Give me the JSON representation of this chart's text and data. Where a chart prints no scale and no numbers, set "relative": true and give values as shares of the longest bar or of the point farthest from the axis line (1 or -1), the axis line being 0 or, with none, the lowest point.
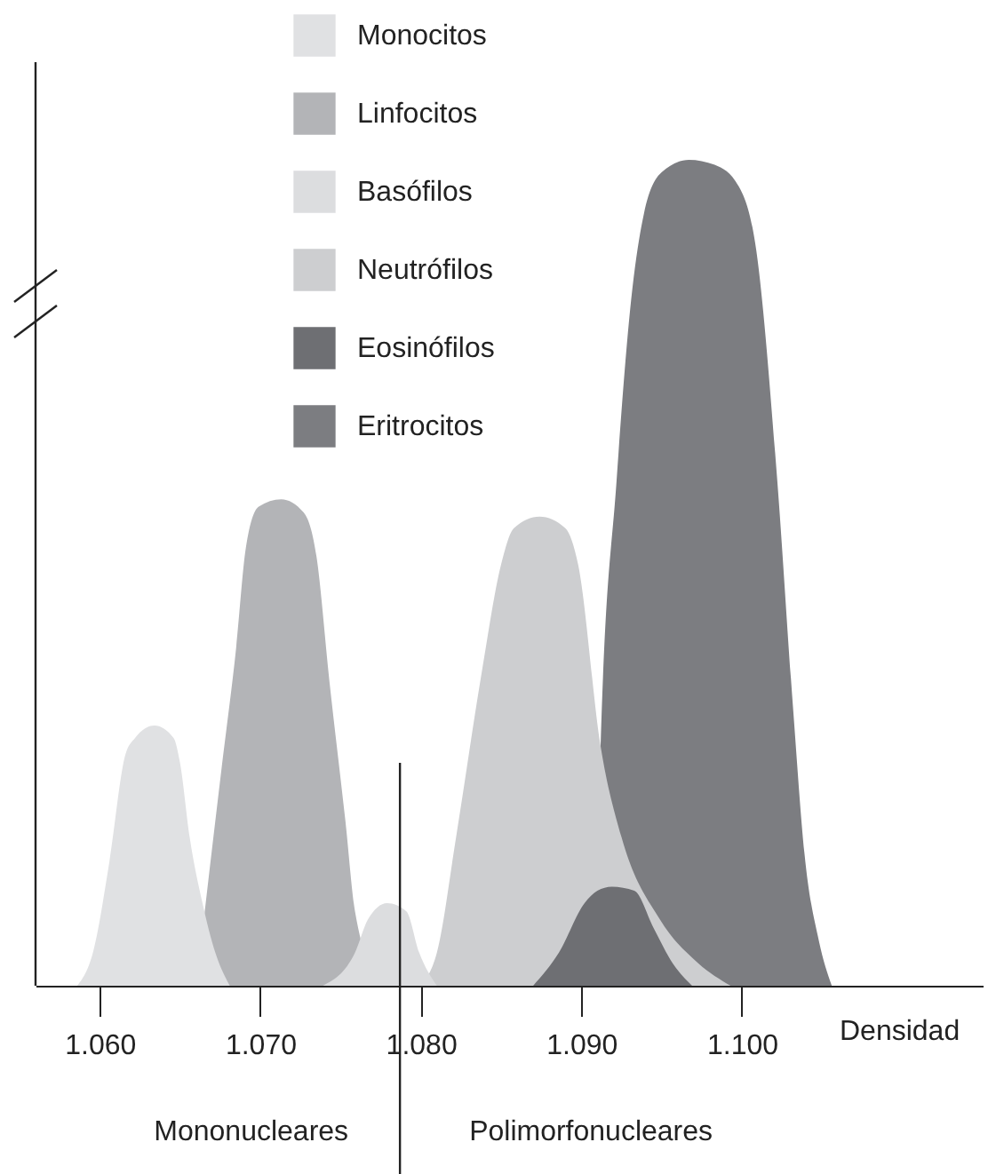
{
  "chart_data": {
    "type": "area",
    "relative": true,
    "xlabel": "Densidad",
    "xlim": [
      1.056,
      1.115
    ],
    "xticks": [
      {
        "value": 1.06,
        "label": "1.060"
      },
      {
        "value": 1.07,
        "label": "1.070"
      },
      {
        "value": 1.08,
        "label": "1.080"
      },
      {
        "value": 1.09,
        "label": "1.090"
      },
      {
        "value": 1.1,
        "label": "1.100"
      }
    ],
    "legend": "top left",
    "grid": false,
    "series": [
      {
        "name": "Monocitos",
        "color": "#e0e1e3",
        "x": [
          1.0586,
          1.0596,
          1.0606,
          1.0616,
          1.0622,
          1.0634,
          1.0646,
          1.065,
          1.0656,
          1.0664,
          1.0672,
          1.0681
        ],
        "values": [
          0,
          0.042,
          0.15,
          0.28,
          0.3,
          0.315,
          0.3,
          0.27,
          0.18,
          0.1,
          0.04,
          0
        ]
      },
      {
        "name": "Linfocitos",
        "color": "#b3b4b7",
        "x": [
          1.066,
          1.0666,
          1.0676,
          1.0685,
          1.0691,
          1.0699,
          1.0713,
          1.0727,
          1.0735,
          1.0743,
          1.0753,
          1.0759,
          1.0775
        ],
        "values": [
          0,
          0.1,
          0.265,
          0.41,
          0.53,
          0.58,
          0.589,
          0.573,
          0.52,
          0.37,
          0.2,
          0.09,
          0
        ]
      },
      {
        "name": "Basófilos",
        "color": "#dcdddf",
        "x": [
          1.0739,
          1.0759,
          1.0767,
          1.0779,
          1.0791,
          1.0799,
          1.081
        ],
        "values": [
          0,
          0.04,
          0.08,
          0.1,
          0.09,
          0.04,
          0
        ]
      },
      {
        "name": "Neutrófilos",
        "color": "#cdced0",
        "x": [
          1.0799,
          1.081,
          1.0822,
          1.0838,
          1.085,
          1.0858,
          1.0874,
          1.089,
          1.0898,
          1.0912,
          1.0925,
          1.0949,
          1.0973,
          1.0993
        ],
        "values": [
          0,
          0.04,
          0.18,
          0.38,
          0.51,
          0.554,
          0.568,
          0.554,
          0.51,
          0.29,
          0.18,
          0.08,
          0.027,
          0
        ]
      },
      {
        "name": "Eosinófilos",
        "color": "#6e6f73",
        "x": [
          1.087,
          1.0886,
          1.0902,
          1.091,
          1.0919,
          1.0933,
          1.0945,
          1.0957,
          1.0969
        ],
        "values": [
          0,
          0.04,
          0.1,
          0.115,
          0.12,
          0.115,
          0.07,
          0.027,
          0
        ]
      },
      {
        "name": "Eritrocitos",
        "color": "#7c7d81",
        "x": [
          1.0909,
          1.0912,
          1.0922,
          1.0931,
          1.0939,
          1.095,
          1.0967,
          1.0983,
          1.0998,
          1.1009,
          1.1022,
          1.1032,
          1.1039,
          1.1048,
          1.1056
        ],
        "values": [
          0,
          0.29,
          0.613,
          0.83,
          0.935,
          0.985,
          1,
          0.994,
          0.968,
          0.89,
          0.613,
          0.333,
          0.16,
          0.054,
          0
        ]
      }
    ],
    "ref_lines": [
      {
        "axis": "x",
        "value": 1.0787
      }
    ],
    "annotations": [
      "Mononucleares",
      "Polimorfonucleares"
    ]
  }
}
